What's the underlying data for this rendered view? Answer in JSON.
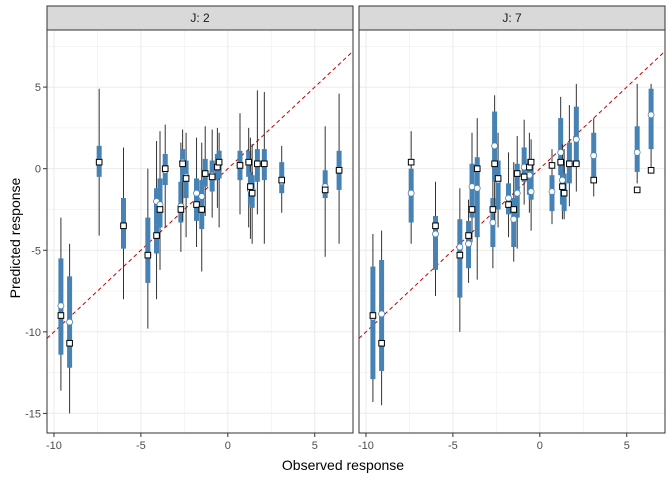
{
  "chart_data": {
    "type": "scatter",
    "xlabel": "Observed response",
    "ylabel": "Predicted response",
    "xlim": [
      -10.4,
      7.2
    ],
    "ylim": [
      -16.2,
      8.5
    ],
    "x_ticks": [
      -10,
      -5,
      0,
      5
    ],
    "y_ticks": [
      -15,
      -10,
      -5,
      0,
      5
    ],
    "x_tick_labels": [
      "-10",
      "-5",
      "0",
      "5"
    ],
    "y_tick_labels": [
      "-15",
      "-10",
      "-5",
      "0",
      "5"
    ],
    "reference_line": {
      "intercept": 0,
      "slope": 1,
      "style": "dashed",
      "color": "#cc0000"
    },
    "grid": true,
    "colors": {
      "interval_inner": "#4682b4",
      "interval_outer": "#333333",
      "strip_fill": "#d9d9d9",
      "panel_border": "#333333",
      "grid": "#ebebeb",
      "median_fill": "#ffffff",
      "mean_fill": "#ffffff"
    },
    "panels": [
      {
        "strip_label": "J: 2",
        "points": [
          {
            "obs": -9.6,
            "pred": -9.0,
            "median": -8.4,
            "inner": [
              -11.4,
              -5.5
            ],
            "outer": [
              -13.6,
              -3.0
            ]
          },
          {
            "obs": -9.1,
            "pred": -10.7,
            "median": -9.4,
            "inner": [
              -12.2,
              -6.6
            ],
            "outer": [
              -15.0,
              -4.6
            ]
          },
          {
            "obs": -7.4,
            "pred": 0.4,
            "median": 0.4,
            "inner": [
              -0.5,
              1.4
            ],
            "outer": [
              -4.1,
              4.9
            ]
          },
          {
            "obs": -6.0,
            "pred": -3.5,
            "median": -3.5,
            "inner": [
              -4.9,
              -1.8
            ],
            "outer": [
              -8.0,
              1.3
            ]
          },
          {
            "obs": -4.6,
            "pred": -5.3,
            "median": -5.3,
            "inner": [
              -7.0,
              -3.0
            ],
            "outer": [
              -9.8,
              0.0
            ]
          },
          {
            "obs": -4.1,
            "pred": -4.1,
            "median": -2.0,
            "inner": [
              -5.2,
              -1.2
            ],
            "outer": [
              -8.0,
              1.7
            ]
          },
          {
            "obs": -3.9,
            "pred": -2.5,
            "median": -2.2,
            "inner": [
              -3.6,
              -0.6
            ],
            "outer": [
              -6.2,
              2.3
            ]
          },
          {
            "obs": -3.6,
            "pred": 0.0,
            "median": -0.1,
            "inner": [
              -1.0,
              0.9
            ],
            "outer": [
              -3.6,
              2.7
            ]
          },
          {
            "obs": -2.7,
            "pred": -2.5,
            "median": -2.3,
            "inner": [
              -3.3,
              -0.8
            ],
            "outer": [
              -5.1,
              1.6
            ]
          },
          {
            "obs": -2.6,
            "pred": 0.3,
            "median": 0.4,
            "inner": [
              -0.8,
              1.2
            ],
            "outer": [
              -3.2,
              2.4
            ]
          },
          {
            "obs": -2.4,
            "pred": -0.6,
            "median": -0.5,
            "inner": [
              -1.8,
              0.5
            ],
            "outer": [
              -4.2,
              2.2
            ]
          },
          {
            "obs": -1.8,
            "pred": -2.2,
            "median": -1.5,
            "inner": [
              -3.2,
              -0.6
            ],
            "outer": [
              -4.8,
              1.9
            ]
          },
          {
            "obs": -1.5,
            "pred": -2.5,
            "median": -1.7,
            "inner": [
              -3.7,
              -0.7
            ],
            "outer": [
              -6.3,
              1.6
            ]
          },
          {
            "obs": -1.3,
            "pred": -0.3,
            "median": -0.3,
            "inner": [
              -1.1,
              0.6
            ],
            "outer": [
              -2.9,
              2.6
            ]
          },
          {
            "obs": -0.9,
            "pred": -0.5,
            "median": -0.4,
            "inner": [
              -1.4,
              0.5
            ],
            "outer": [
              -3.0,
              2.4
            ]
          },
          {
            "obs": -0.6,
            "pred": 0.1,
            "median": 0.1,
            "inner": [
              -0.7,
              0.9
            ],
            "outer": [
              -2.4,
              2.5
            ]
          },
          {
            "obs": -0.5,
            "pred": 0.4,
            "median": 0.3,
            "inner": [
              -0.6,
              1.1
            ],
            "outer": [
              -3.6,
              2.2
            ]
          },
          {
            "obs": 0.7,
            "pred": 0.2,
            "median": 0.2,
            "inner": [
              -0.7,
              1.1
            ],
            "outer": [
              -2.8,
              3.4
            ]
          },
          {
            "obs": 1.2,
            "pred": 0.4,
            "median": 0.4,
            "inner": [
              -0.5,
              1.1
            ],
            "outer": [
              -3.6,
              2.5
            ]
          },
          {
            "obs": 1.3,
            "pred": -1.1,
            "median": -1.3,
            "inner": [
              -2.2,
              -0.2
            ],
            "outer": [
              -4.3,
              1.9
            ]
          },
          {
            "obs": 1.4,
            "pred": -1.5,
            "median": -1.3,
            "inner": [
              -2.4,
              -0.4
            ],
            "outer": [
              -4.6,
              1.5
            ]
          },
          {
            "obs": 1.7,
            "pred": 0.3,
            "median": 0.3,
            "inner": [
              -0.8,
              1.2
            ],
            "outer": [
              -2.8,
              4.8
            ]
          },
          {
            "obs": 2.1,
            "pred": 0.3,
            "median": 0.3,
            "inner": [
              -0.7,
              1.2
            ],
            "outer": [
              -4.6,
              4.7
            ]
          },
          {
            "obs": 3.1,
            "pred": -0.7,
            "median": -0.8,
            "inner": [
              -1.5,
              0.4
            ],
            "outer": [
              -2.7,
              1.4
            ]
          },
          {
            "obs": 5.6,
            "pred": -1.3,
            "median": -1.1,
            "inner": [
              -1.8,
              -0.1
            ],
            "outer": [
              -5.4,
              2.6
            ]
          },
          {
            "obs": 6.4,
            "pred": -0.1,
            "median": -0.1,
            "inner": [
              -1.3,
              1.1
            ],
            "outer": [
              -4.6,
              4.6
            ]
          }
        ]
      },
      {
        "strip_label": "J: 7",
        "points": [
          {
            "obs": -9.6,
            "pred": -9.0,
            "median": -9.1,
            "inner": [
              -12.9,
              -6.0
            ],
            "outer": [
              -14.3,
              -4.0
            ]
          },
          {
            "obs": -9.1,
            "pred": -10.7,
            "median": -8.9,
            "inner": [
              -12.4,
              -5.6
            ],
            "outer": [
              -14.5,
              -3.8
            ]
          },
          {
            "obs": -7.4,
            "pred": 0.4,
            "median": -1.5,
            "inner": [
              -3.3,
              0.0
            ],
            "outer": [
              -4.6,
              2.3
            ]
          },
          {
            "obs": -6.0,
            "pred": -3.5,
            "median": -4.0,
            "inner": [
              -6.2,
              -2.9
            ],
            "outer": [
              -7.8,
              -0.8
            ]
          },
          {
            "obs": -4.6,
            "pred": -5.3,
            "median": -4.8,
            "inner": [
              -7.9,
              -3.1
            ],
            "outer": [
              -10.0,
              -1.2
            ]
          },
          {
            "obs": -4.1,
            "pred": -4.1,
            "median": -4.6,
            "inner": [
              -6.1,
              -3.2
            ],
            "outer": [
              -7.0,
              -1.9
            ]
          },
          {
            "obs": -3.9,
            "pred": -2.5,
            "median": -1.1,
            "inner": [
              -3.0,
              0.3
            ],
            "outer": [
              -4.5,
              2.2
            ]
          },
          {
            "obs": -3.6,
            "pred": 0.0,
            "median": -1.2,
            "inner": [
              -4.2,
              0.7
            ],
            "outer": [
              -6.8,
              3.1
            ]
          },
          {
            "obs": -2.7,
            "pred": -2.5,
            "median": -3.3,
            "inner": [
              -4.8,
              -1.8
            ],
            "outer": [
              -6.1,
              0.1
            ]
          },
          {
            "obs": -2.6,
            "pred": 0.3,
            "median": 1.4,
            "inner": [
              -0.8,
              3.5
            ],
            "outer": [
              -3.2,
              4.5
            ]
          },
          {
            "obs": -2.4,
            "pred": -0.6,
            "median": -0.7,
            "inner": [
              -2.5,
              0.5
            ],
            "outer": [
              -3.6,
              2.2
            ]
          },
          {
            "obs": -1.8,
            "pred": -2.2,
            "median": -1.8,
            "inner": [
              -2.8,
              -0.9
            ],
            "outer": [
              -4.2,
              1.0
            ]
          },
          {
            "obs": -1.5,
            "pred": -2.5,
            "median": -3.1,
            "inner": [
              -4.8,
              -1.8
            ],
            "outer": [
              -5.7,
              0.4
            ]
          },
          {
            "obs": -1.3,
            "pred": -0.3,
            "median": -1.5,
            "inner": [
              -3.0,
              0.3
            ],
            "outer": [
              -4.9,
              2.0
            ]
          },
          {
            "obs": -0.9,
            "pred": -0.5,
            "median": 0.1,
            "inner": [
              -0.8,
              1.3
            ],
            "outer": [
              -2.2,
              3.0
            ]
          },
          {
            "obs": -0.6,
            "pred": 0.1,
            "median": -0.4,
            "inner": [
              -1.6,
              0.6
            ],
            "outer": [
              -2.7,
              2.2
            ]
          },
          {
            "obs": -0.5,
            "pred": 0.4,
            "median": -1.4,
            "inner": [
              -1.9,
              0.2
            ],
            "outer": [
              -3.8,
              1.8
            ]
          },
          {
            "obs": 0.7,
            "pred": 0.2,
            "median": -1.4,
            "inner": [
              -2.6,
              -0.4
            ],
            "outer": [
              -3.4,
              1.2
            ]
          },
          {
            "obs": 1.2,
            "pred": 0.4,
            "median": 1.0,
            "inner": [
              -0.4,
              3.1
            ],
            "outer": [
              -1.4,
              4.4
            ]
          },
          {
            "obs": 1.3,
            "pred": -1.1,
            "median": -0.7,
            "inner": [
              -2.2,
              0.5
            ],
            "outer": [
              -3.1,
              1.5
            ]
          },
          {
            "obs": 1.4,
            "pred": -1.5,
            "median": -1.4,
            "inner": [
              -2.6,
              -0.3
            ],
            "outer": [
              -3.1,
              1.2
            ]
          },
          {
            "obs": 1.7,
            "pred": 0.3,
            "median": 0.3,
            "inner": [
              -0.9,
              1.6
            ],
            "outer": [
              -2.3,
              3.9
            ]
          },
          {
            "obs": 2.1,
            "pred": 0.3,
            "median": 1.8,
            "inner": [
              0.2,
              3.8
            ],
            "outer": [
              -1.4,
              5.2
            ]
          },
          {
            "obs": 3.1,
            "pred": -0.7,
            "median": 0.8,
            "inner": [
              -0.5,
              2.2
            ],
            "outer": [
              -1.7,
              3.1
            ]
          },
          {
            "obs": 5.6,
            "pred": -1.3,
            "median": 1.0,
            "inner": [
              -0.2,
              2.6
            ],
            "outer": [
              -0.9,
              5.2
            ]
          },
          {
            "obs": 6.4,
            "pred": -0.1,
            "median": 3.3,
            "inner": [
              1.2,
              4.9
            ],
            "outer": [
              -0.3,
              5.2
            ]
          }
        ]
      }
    ]
  }
}
